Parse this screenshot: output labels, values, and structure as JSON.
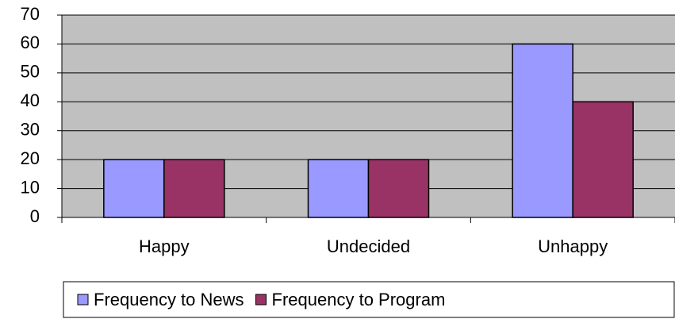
{
  "chart_data": {
    "type": "bar",
    "categories": [
      "Happy",
      "Undecided",
      "Unhappy"
    ],
    "series": [
      {
        "name": "Frequency to News",
        "color": "#9999ff",
        "values": [
          20,
          20,
          60
        ]
      },
      {
        "name": "Frequency to Program",
        "color": "#993366",
        "values": [
          20,
          20,
          40
        ]
      }
    ],
    "ylim": [
      0,
      70
    ],
    "yticks": [
      0,
      10,
      20,
      30,
      40,
      50,
      60,
      70
    ],
    "grid": true,
    "legend": "bottom"
  }
}
